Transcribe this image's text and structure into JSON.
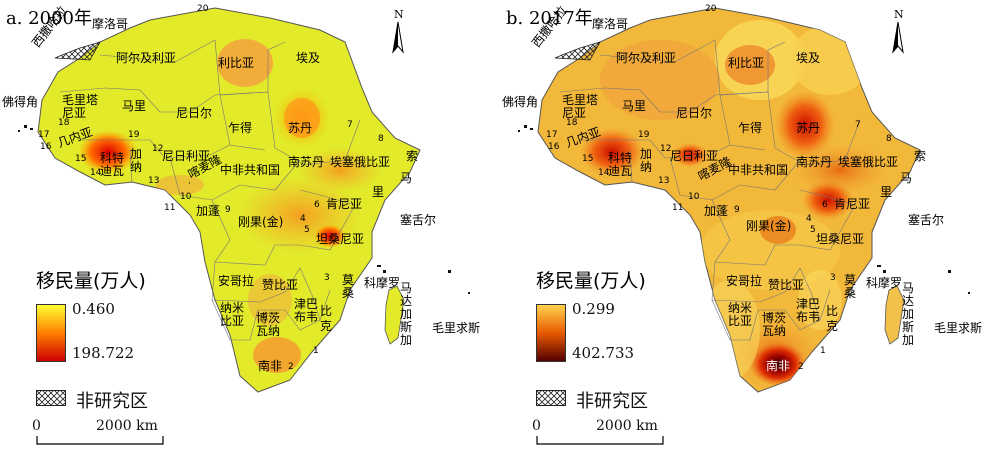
{
  "panels": [
    {
      "id": "a",
      "title": "a. 2000年",
      "legend": {
        "title": "移民量(万人)",
        "min": "0.460",
        "max": "198.722",
        "colors": [
          "#ffff33",
          "#ff8000",
          "#cc0000"
        ]
      },
      "hatch_label": "非研究区",
      "scale": {
        "zero": "0",
        "distance": "2000 km"
      }
    },
    {
      "id": "b",
      "title": "b. 2017年",
      "legend": {
        "title": "移民量(万人)",
        "min": "0.299",
        "max": "402.733",
        "colors": [
          "#ffd24d",
          "#e85a00",
          "#550000"
        ]
      },
      "hatch_label": "非研究区",
      "scale": {
        "zero": "0",
        "distance": "2000 km"
      }
    }
  ],
  "north_label": "N",
  "country_labels": [
    "摩洛哥",
    "西撒哈拉",
    "阿尔及利亚",
    "利比亚",
    "埃及",
    "佛得角",
    "毛里塔尼亚",
    "马里",
    "尼日尔",
    "乍得",
    "苏丹",
    "尼日利亚",
    "南苏丹",
    "埃塞俄比亚",
    "中非共和国",
    "喀麦隆",
    "加蓬",
    "刚果(金)",
    "肯尼亚",
    "坦桑尼亚",
    "塞舌尔",
    "安哥拉",
    "赞比亚",
    "莫桑",
    "科摩罗",
    "马达加斯加",
    "纳米比亚",
    "博茨瓦纳",
    "津巴布韦",
    "毛里求斯",
    "南非",
    "加纳",
    "科特迪瓦",
    "几内亚",
    "里",
    "索",
    "马",
    "克",
    "比"
  ],
  "number_labels": [
    "20",
    "19",
    "18",
    "17",
    "16",
    "15",
    "14",
    "13",
    "12",
    "11",
    "10",
    "9",
    "8",
    "7",
    "6",
    "5",
    "4",
    "3",
    "2",
    "1"
  ]
}
